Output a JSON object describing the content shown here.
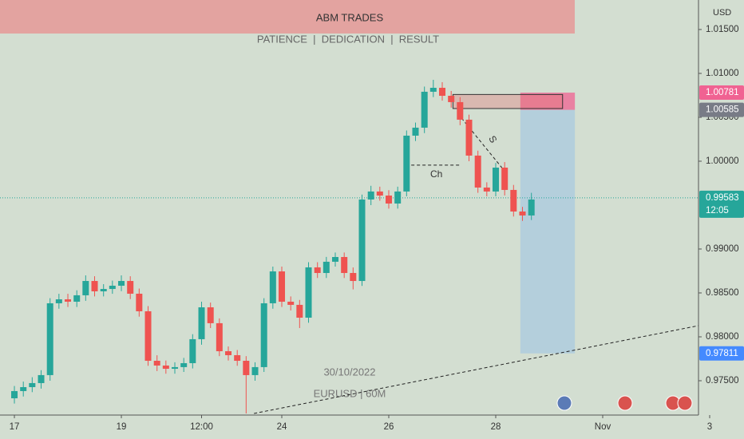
{
  "chart_data": {
    "type": "candlestick",
    "header": "ABM TRADES",
    "subtitle": "PATIENCE  |  DEDICATION  |  RESULT",
    "watermark_date": "30/10/2022",
    "watermark_symbol": "EURUSD | 60M",
    "currency": "USD",
    "up_color": "#26a69a",
    "down_color": "#ef5350",
    "x": [
      0,
      0.167,
      0.333,
      0.5,
      0.667,
      0.833,
      1,
      1.167,
      1.333,
      1.5,
      1.667,
      1.833,
      2,
      2.167,
      2.333,
      2.5,
      2.667,
      2.833,
      3,
      3.167,
      3.333,
      3.5,
      3.667,
      3.833,
      4,
      4.167,
      4.333,
      4.5,
      4.667,
      4.833,
      5,
      5.167,
      5.333,
      5.5,
      5.667,
      5.833,
      6,
      6.167,
      6.333,
      6.5,
      6.667,
      6.833,
      7,
      7.167,
      7.333,
      7.5,
      7.667,
      7.833,
      8,
      8.167,
      8.333,
      8.5,
      8.667,
      8.833,
      9,
      9.167,
      9.333,
      9.5,
      9.667
    ],
    "open": [
      0.973,
      0.97382,
      0.97427,
      0.97473,
      0.97564,
      0.98382,
      0.98427,
      0.984,
      0.98473,
      0.98636,
      0.98518,
      0.98545,
      0.98582,
      0.98636,
      0.98491,
      0.98291,
      0.97727,
      0.97673,
      0.97636,
      0.97655,
      0.977,
      0.97973,
      0.98336,
      0.98155,
      0.97836,
      0.97791,
      0.97727,
      0.97564,
      0.97655,
      0.98382,
      0.98745,
      0.984,
      0.98364,
      0.98218,
      0.98791,
      0.98727,
      0.98855,
      0.98909,
      0.98727,
      0.98636,
      0.99564,
      0.99655,
      0.99609,
      0.99518,
      0.99655,
      1.00291,
      1.00382,
      1.00791,
      1.00836,
      1.00745,
      1.00673,
      1.00473,
      1.00064,
      0.997,
      0.99655,
      0.99927,
      0.99673,
      0.99427,
      0.99382
    ],
    "high": [
      0.9744,
      0.9749,
      0.9754,
      0.9762,
      0.9844,
      0.9849,
      0.9849,
      0.9853,
      0.987,
      0.9869,
      0.986,
      0.9864,
      0.987,
      0.9869,
      0.9855,
      0.9835,
      0.9779,
      0.9773,
      0.9771,
      0.9776,
      0.9803,
      0.984,
      0.9839,
      0.9821,
      0.9789,
      0.9785,
      0.9778,
      0.9771,
      0.9844,
      0.988,
      0.988,
      0.9846,
      0.9842,
      0.9885,
      0.9885,
      0.9891,
      0.9896,
      0.9896,
      0.9879,
      0.9962,
      0.9972,
      0.9971,
      0.9967,
      0.9971,
      1.0035,
      1.0044,
      1.0085,
      1.00927,
      1.009,
      1.008,
      1.0073,
      1.0053,
      1.0012,
      0.9976,
      0.9998,
      0.9999,
      0.9973,
      0.9948,
      0.9964
    ],
    "low": [
      0.9724,
      0.9732,
      0.9737,
      0.9741,
      0.975,
      0.9832,
      0.9834,
      0.9834,
      0.9841,
      0.9846,
      0.9846,
      0.9849,
      0.9852,
      0.9843,
      0.9823,
      0.9767,
      0.9761,
      0.9758,
      0.9758,
      0.976,
      0.9764,
      0.9791,
      0.981,
      0.9778,
      0.9773,
      0.9767,
      0.97127,
      0.975,
      0.976,
      0.9832,
      0.9834,
      0.983,
      0.981,
      0.9816,
      0.9867,
      0.9867,
      0.988,
      0.9867,
      0.9854,
      0.9858,
      0.995,
      0.9955,
      0.9946,
      0.9946,
      0.996,
      1.0023,
      1.0032,
      1.0073,
      1.0069,
      1.0061,
      1.0041,
      1.0,
      0.9964,
      0.996,
      0.996,
      0.9961,
      0.9937,
      0.9932,
      0.9933
    ],
    "close": [
      0.97382,
      0.97427,
      0.97473,
      0.97564,
      0.98382,
      0.98427,
      0.984,
      0.98473,
      0.98636,
      0.98518,
      0.98545,
      0.98582,
      0.98636,
      0.98491,
      0.98291,
      0.97727,
      0.97673,
      0.97636,
      0.97655,
      0.977,
      0.97973,
      0.98336,
      0.98155,
      0.97836,
      0.97791,
      0.97727,
      0.97564,
      0.97655,
      0.98382,
      0.98745,
      0.984,
      0.98364,
      0.98218,
      0.98791,
      0.98727,
      0.98855,
      0.98909,
      0.98727,
      0.98636,
      0.99564,
      0.99655,
      0.99609,
      0.99518,
      0.99655,
      1.00291,
      1.00382,
      1.00791,
      1.00836,
      1.00745,
      1.00673,
      1.00473,
      1.00064,
      0.997,
      0.99655,
      0.99927,
      0.99673,
      0.99427,
      0.99382,
      0.99564
    ],
    "xlim": [
      -0.269,
      13.642
    ],
    "xticks": [
      {
        "value": 0,
        "label": "17"
      },
      {
        "value": 2,
        "label": "19"
      },
      {
        "value": 3.5,
        "label": "12:00"
      },
      {
        "value": 5,
        "label": "24"
      },
      {
        "value": 7,
        "label": "26"
      },
      {
        "value": 9,
        "label": "28"
      },
      {
        "value": 11,
        "label": "Nov"
      },
      {
        "value": 13,
        "label": "3"
      }
    ],
    "ylim": [
      0.97109,
      1.01836
    ],
    "yticks": [
      {
        "value": 1.015,
        "label": "1.01500"
      },
      {
        "value": 1.01,
        "label": "1.01000"
      },
      {
        "value": 1.005,
        "label": "1.00500"
      },
      {
        "value": 1.0,
        "label": "1.00000"
      },
      {
        "value": 0.99,
        "label": "0.99000"
      },
      {
        "value": 0.985,
        "label": "0.98500"
      },
      {
        "value": 0.98,
        "label": "0.98000"
      },
      {
        "value": 0.975,
        "label": "0.97500"
      }
    ],
    "last_price": 0.99583,
    "countdown": "12:05",
    "position": {
      "stop": 1.00781,
      "entry": 1.00585,
      "target": 0.97811,
      "x": [
        9.46,
        10.48
      ]
    },
    "zone": {
      "x": [
        8.2,
        10.25
      ],
      "y": [
        1.006,
        1.0076
      ]
    },
    "ch_line": {
      "x": [
        7.42,
        8.36
      ],
      "y": 0.99955,
      "label": "Ch"
    },
    "s_line": {
      "x": [
        8.36,
        9.21
      ],
      "y": [
        1.00491,
        0.99855
      ],
      "label": "S"
    },
    "trendline": {
      "x": [
        4.48,
        12.79
      ],
      "y": [
        0.97127,
        0.98127
      ]
    }
  }
}
